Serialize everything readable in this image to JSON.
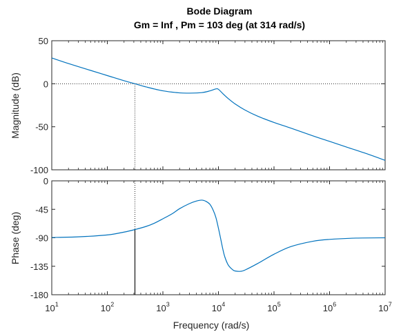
{
  "chart_data": {
    "type": "line",
    "title": "Bode Diagram",
    "subtitle": "Gm = Inf ,  Pm = 103 deg (at 314 rad/s)",
    "xlabel": "Frequency  (rad/s)",
    "xscale": "log",
    "xlim": [
      10,
      10000000
    ],
    "x_ticks": [
      {
        "base": "10",
        "exp": "1"
      },
      {
        "base": "10",
        "exp": "2"
      },
      {
        "base": "10",
        "exp": "3"
      },
      {
        "base": "10",
        "exp": "4"
      },
      {
        "base": "10",
        "exp": "5"
      },
      {
        "base": "10",
        "exp": "6"
      },
      {
        "base": "10",
        "exp": "7"
      }
    ],
    "line_color": "#0072bd",
    "crossover_frequency": 314,
    "magnitude": {
      "ylabel": "Magnitude (dB)",
      "ylim": [
        -100,
        50
      ],
      "yticks": [
        "50",
        "0",
        "-50",
        "-100"
      ],
      "reference_level": 0,
      "x": [
        10,
        20,
        50,
        100,
        200,
        314,
        500,
        1000,
        2000,
        3000,
        5000,
        7000,
        9000,
        10000,
        12000,
        15000,
        20000,
        30000,
        50000,
        100000,
        200000,
        500000,
        1000000,
        2000000,
        5000000,
        10000000
      ],
      "y": [
        30,
        23.5,
        15.5,
        9.5,
        3.5,
        0,
        -3.7,
        -8.2,
        -10.6,
        -10.9,
        -10.3,
        -8.3,
        -6.0,
        -6.5,
        -11.5,
        -17.2,
        -23.5,
        -30.5,
        -37.5,
        -45.0,
        -51.5,
        -60.5,
        -67.0,
        -73.5,
        -82.0,
        -89.0
      ]
    },
    "phase": {
      "ylabel": "Phase (deg)",
      "ylim": [
        -180,
        0
      ],
      "yticks": [
        "0",
        "-45",
        "-90",
        "-135",
        "-180"
      ],
      "phase_margin_line_from": -180,
      "x": [
        10,
        30,
        100,
        200,
        314,
        500,
        700,
        1000,
        1500,
        2000,
        3000,
        4000,
        5000,
        6000,
        7000,
        8000,
        9000,
        10000,
        11000,
        12000,
        13000,
        15000,
        18000,
        20000,
        25000,
        30000,
        50000,
        100000,
        200000,
        500000,
        1000000,
        3000000,
        10000000
      ],
      "y": [
        -89.5,
        -88.5,
        -85.5,
        -81.0,
        -77.0,
        -72.0,
        -67.0,
        -60.0,
        -51.5,
        -44.0,
        -36.0,
        -32.0,
        -30.5,
        -32.5,
        -37.0,
        -46.0,
        -58.0,
        -75.0,
        -92.0,
        -108.0,
        -120.0,
        -133.0,
        -140.5,
        -142.5,
        -143.0,
        -141.0,
        -131.0,
        -116.0,
        -104.0,
        -95.5,
        -92.5,
        -90.5,
        -90.0
      ]
    }
  }
}
